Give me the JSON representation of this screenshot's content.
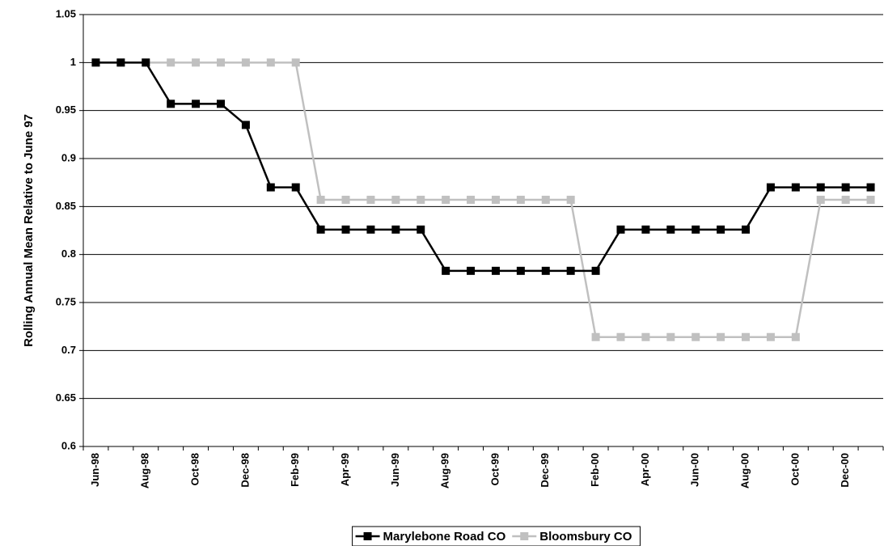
{
  "chart_data": {
    "type": "line",
    "y_label": "Rolling Annual Mean Relative to June 97",
    "categories": [
      "Jun-98",
      null,
      "Aug-98",
      null,
      "Oct-98",
      null,
      "Dec-98",
      null,
      "Feb-99",
      null,
      "Apr-99",
      null,
      "Jun-99",
      null,
      "Aug-99",
      null,
      "Oct-99",
      null,
      "Dec-99",
      null,
      "Feb-00",
      null,
      "Apr-00",
      null,
      "Jun-00",
      null,
      "Aug-00",
      null,
      "Oct-00",
      null,
      "Dec-00",
      null
    ],
    "series": [
      {
        "name": "Marylebone Road CO",
        "color": "#000000",
        "values": [
          1,
          1,
          1,
          0.957,
          0.957,
          0.957,
          0.935,
          0.87,
          0.87,
          0.826,
          0.826,
          0.826,
          0.826,
          0.826,
          0.783,
          0.783,
          0.783,
          0.783,
          0.783,
          0.783,
          0.783,
          0.826,
          0.826,
          0.826,
          0.826,
          0.826,
          0.826,
          0.87,
          0.87,
          0.87,
          0.87,
          0.87
        ]
      },
      {
        "name": "Bloomsbury CO",
        "color": "#c0c0c0",
        "values": [
          1,
          1,
          1,
          1,
          1,
          1,
          1,
          1,
          1,
          0.857,
          0.857,
          0.857,
          0.857,
          0.857,
          0.857,
          0.857,
          0.857,
          0.857,
          0.857,
          0.857,
          0.714,
          0.714,
          0.714,
          0.714,
          0.714,
          0.714,
          0.714,
          0.714,
          0.714,
          0.857,
          0.857,
          0.857
        ]
      }
    ],
    "ylim": [
      0.6,
      1.05
    ],
    "yticks": [
      0.6,
      0.65,
      0.7,
      0.75,
      0.8,
      0.85,
      0.9,
      0.95,
      1,
      1.05
    ],
    "grid": true,
    "legend": "bottom"
  }
}
